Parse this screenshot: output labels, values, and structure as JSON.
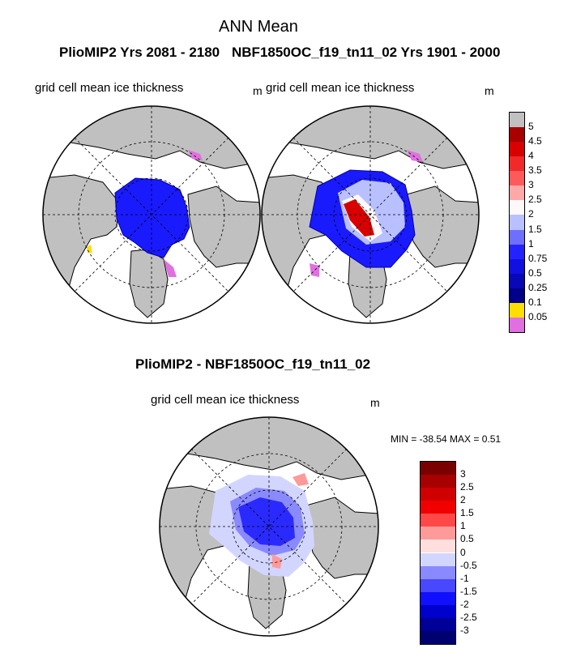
{
  "main_title": "ANN Mean",
  "panels": {
    "left": {
      "header": "PlioMIP2  Yrs 2081 - 2180",
      "variable": "grid cell mean ice thickness",
      "units": "m"
    },
    "right": {
      "header": "NBF1850OC_f19_tn11_02  Yrs 1901 - 2000",
      "variable": "grid cell mean ice thickness",
      "units": "m"
    },
    "diff": {
      "header": "PlioMIP2 - NBF1850OC_f19_tn11_02",
      "variable": "grid cell mean ice thickness",
      "units": "m",
      "minmax": "MIN = -38.54 MAX =   0.51"
    }
  },
  "colorbar_top": {
    "labels": [
      "5",
      "4.5",
      "4",
      "3.5",
      "3",
      "2.5",
      "2",
      "1.5",
      "1",
      "0.75",
      "0.5",
      "0.25",
      "0.1",
      "0.05"
    ],
    "colors": [
      "#c0c0c0",
      "#a80000",
      "#d80000",
      "#f02a2a",
      "#ff5a5a",
      "#ffa8a8",
      "#fff8f8",
      "#b8c0ff",
      "#6e6eff",
      "#2323ff",
      "#1010e0",
      "#0808b4",
      "#000088",
      "#ffde00",
      "#e070e0"
    ]
  },
  "colorbar_diff": {
    "labels": [
      "3",
      "2.5",
      "2",
      "1.5",
      "1",
      "0.5",
      "0",
      "-0.5",
      "-1",
      "-1.5",
      "-2",
      "-2.5",
      "-3"
    ],
    "colors": [
      "#7a0000",
      "#a80000",
      "#d00000",
      "#f00000",
      "#ff4848",
      "#ff9a9a",
      "#ffdede",
      "#d2d6ff",
      "#8a8aff",
      "#4848ff",
      "#1010ff",
      "#0000cc",
      "#000098",
      "#000070"
    ]
  },
  "colors": {
    "land": "#c0c0c0",
    "ocean": "#ffffff"
  }
}
